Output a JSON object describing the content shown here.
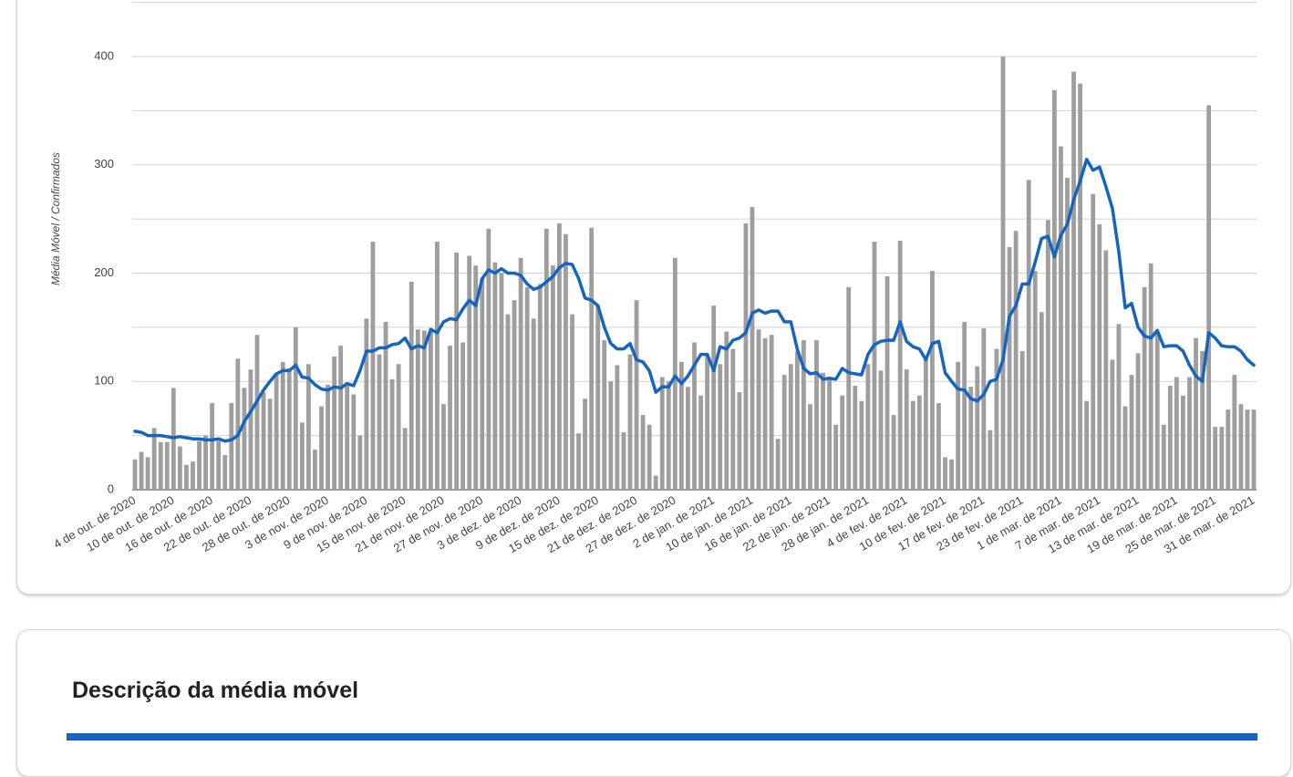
{
  "chart_data": {
    "type": "bar",
    "y_label": "Média Móvel / Confirmados",
    "ylim": [
      0,
      450
    ],
    "yticks": [
      0,
      100,
      200,
      300,
      400
    ],
    "minor_yticks": [
      50,
      150,
      250,
      350,
      450
    ],
    "grid": true,
    "categories": [
      "4 de out. de 2020",
      null,
      null,
      null,
      null,
      null,
      "10 de out. de 2020",
      null,
      null,
      null,
      null,
      null,
      "16 de out. de 2020",
      null,
      null,
      null,
      null,
      null,
      "22 de out. de 2020",
      null,
      null,
      null,
      null,
      null,
      "28 de out. de 2020",
      null,
      null,
      null,
      null,
      null,
      "3 de nov. de 2020",
      null,
      null,
      null,
      null,
      null,
      "9 de nov. de 2020",
      null,
      null,
      null,
      null,
      null,
      "15 de nov. de 2020",
      null,
      null,
      null,
      null,
      null,
      "21 de nov. de 2020",
      null,
      null,
      null,
      null,
      null,
      "27 de nov. de 2020",
      null,
      null,
      null,
      null,
      null,
      "3 de dez. de 2020",
      null,
      null,
      null,
      null,
      null,
      "9 de dez. de 2020",
      null,
      null,
      null,
      null,
      null,
      "15 de dez. de 2020",
      null,
      null,
      null,
      null,
      null,
      "21 de dez. de 2020",
      null,
      null,
      null,
      null,
      null,
      "27 de dez. de 2020",
      null,
      null,
      null,
      null,
      null,
      "2 de jan. de 2021",
      null,
      null,
      null,
      null,
      null,
      "10 de jan. de 2021",
      null,
      null,
      null,
      null,
      null,
      "16 de jan. de 2021",
      null,
      null,
      null,
      null,
      null,
      "22 de jan. de 2021",
      null,
      null,
      null,
      null,
      null,
      "28 de jan. de 2021",
      null,
      null,
      null,
      null,
      null,
      "4 de fev. de 2021",
      null,
      null,
      null,
      null,
      null,
      "10 de fev. de 2021",
      null,
      null,
      null,
      null,
      null,
      "17 de fev. de 2021",
      null,
      null,
      null,
      null,
      null,
      "23 de fev. de 2021",
      null,
      null,
      null,
      null,
      null,
      "1 de mar. de 2021",
      null,
      null,
      null,
      null,
      null,
      "7 de mar. de 2021",
      null,
      null,
      null,
      null,
      null,
      "13 de mar. de 2021",
      null,
      null,
      null,
      null,
      null,
      "19 de mar. de 2021",
      null,
      null,
      null,
      null,
      null,
      "25 de mar. de 2021",
      null,
      null,
      null,
      null,
      null,
      "31 de mar. de 2021"
    ],
    "series": [
      {
        "type": "bar",
        "color": "#9e9e9e",
        "values": [
          28,
          35,
          30,
          57,
          44,
          44,
          94,
          40,
          23,
          26,
          45,
          50,
          80,
          45,
          32,
          80,
          121,
          94,
          111,
          143,
          90,
          84,
          108,
          118,
          112,
          150,
          62,
          116,
          37,
          77,
          97,
          123,
          133,
          97,
          88,
          50,
          158,
          229,
          125,
          155,
          102,
          116,
          57,
          192,
          148,
          147,
          146,
          229,
          79,
          133,
          219,
          136,
          216,
          207,
          195,
          241,
          210,
          200,
          162,
          175,
          214,
          187,
          158,
          190,
          241,
          207,
          246,
          236,
          162,
          52,
          84,
          242,
          170,
          138,
          100,
          115,
          53,
          125,
          175,
          69,
          60,
          13,
          104,
          100,
          214,
          118,
          95,
          136,
          87,
          125,
          170,
          116,
          146,
          130,
          90,
          246,
          261,
          148,
          140,
          143,
          47,
          106,
          116,
          128,
          138,
          79,
          138,
          108,
          102,
          60,
          87,
          187,
          96,
          82,
          116,
          229,
          110,
          197,
          69,
          230,
          111,
          82,
          87,
          120,
          202,
          80,
          30,
          28,
          118,
          155,
          95,
          114,
          149,
          55,
          130,
          400,
          224,
          239,
          128,
          286,
          202,
          164,
          249,
          369,
          317,
          288,
          386,
          375,
          82,
          273,
          245,
          221,
          120,
          153,
          77,
          106,
          126,
          187,
          209,
          146,
          60,
          96,
          104,
          87,
          104,
          140,
          128,
          355,
          58,
          58,
          74,
          106,
          79,
          74,
          74
        ]
      },
      {
        "type": "line",
        "color": "#1565c0",
        "values": [
          54,
          53,
          50,
          50,
          50,
          49,
          48,
          49,
          48,
          47,
          47,
          46,
          46,
          47,
          45,
          46,
          50,
          63,
          72,
          82,
          92,
          100,
          107,
          110,
          110,
          115,
          104,
          103,
          97,
          93,
          92,
          95,
          94,
          98,
          96,
          110,
          128,
          128,
          131,
          131,
          134,
          135,
          140,
          130,
          133,
          131,
          148,
          145,
          155,
          158,
          157,
          167,
          175,
          170,
          195,
          203,
          200,
          204,
          200,
          200,
          198,
          190,
          185,
          187,
          192,
          197,
          205,
          209,
          208,
          195,
          177,
          175,
          170,
          150,
          135,
          130,
          130,
          135,
          120,
          118,
          110,
          90,
          95,
          95,
          105,
          98,
          105,
          115,
          125,
          125,
          110,
          132,
          130,
          138,
          140,
          145,
          163,
          166,
          163,
          165,
          165,
          155,
          155,
          130,
          112,
          107,
          108,
          102,
          103,
          102,
          112,
          108,
          107,
          106,
          125,
          134,
          137,
          138,
          138,
          155,
          137,
          132,
          130,
          120,
          135,
          137,
          108,
          100,
          93,
          92,
          84,
          82,
          88,
          100,
          102,
          120,
          160,
          170,
          190,
          190,
          210,
          232,
          234,
          215,
          235,
          245,
          268,
          285,
          305,
          295,
          298,
          280,
          260,
          220,
          168,
          172,
          150,
          142,
          140,
          147,
          132,
          133,
          133,
          128,
          115,
          105,
          100,
          145,
          140,
          133,
          132,
          132,
          128,
          120,
          115
        ]
      }
    ]
  },
  "description": {
    "title": "Descrição da média móvel"
  }
}
